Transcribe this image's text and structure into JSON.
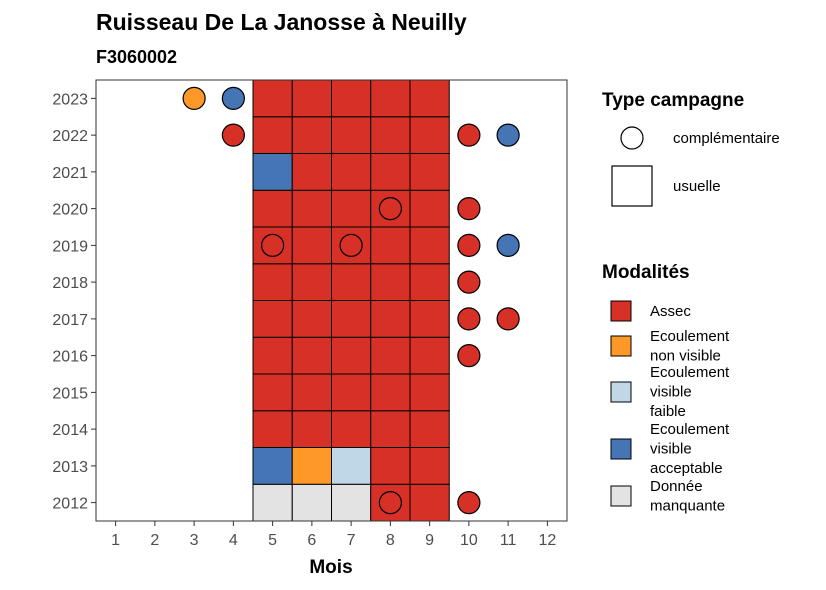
{
  "chart_data": {
    "type": "heatmap",
    "title": "Ruisseau De La Janosse à Neuilly",
    "subtitle": "F3060002",
    "xlabel": "Mois",
    "ylabel": "",
    "x_ticks": [
      "1",
      "2",
      "3",
      "4",
      "5",
      "6",
      "7",
      "8",
      "9",
      "10",
      "11",
      "12"
    ],
    "y_ticks": [
      "2012",
      "2013",
      "2014",
      "2015",
      "2016",
      "2017",
      "2018",
      "2019",
      "2020",
      "2021",
      "2022",
      "2023"
    ],
    "xlim": [
      0.5,
      12.5
    ],
    "ylim": [
      2011.5,
      2023.5
    ],
    "grid": false,
    "legend_position": "right",
    "legend_shape": {
      "title": "Type campagne",
      "items": [
        {
          "label": "complémentaire",
          "shape": "circle"
        },
        {
          "label": "usuelle",
          "shape": "square"
        }
      ]
    },
    "legend_color": {
      "title": "Modalités",
      "items": [
        {
          "key": "assec",
          "label_lines": [
            "Assec"
          ],
          "color": "#d73027"
        },
        {
          "key": "nonvisible",
          "label_lines": [
            "Ecoulement",
            "non visible"
          ],
          "color": "#fe9929"
        },
        {
          "key": "faible",
          "label_lines": [
            "Ecoulement",
            "visible",
            "faible"
          ],
          "color": "#bfd7e6"
        },
        {
          "key": "acceptable",
          "label_lines": [
            "Ecoulement",
            "visible",
            "acceptable"
          ],
          "color": "#4575b4"
        },
        {
          "key": "manquante",
          "label_lines": [
            "Donnée",
            "manquante"
          ],
          "color": "#e3e3e3"
        }
      ]
    },
    "usuelle": [
      {
        "year": 2012,
        "month": 5,
        "value": "manquante"
      },
      {
        "year": 2012,
        "month": 6,
        "value": "manquante"
      },
      {
        "year": 2012,
        "month": 7,
        "value": "manquante"
      },
      {
        "year": 2012,
        "month": 8,
        "value": "assec"
      },
      {
        "year": 2012,
        "month": 9,
        "value": "assec"
      },
      {
        "year": 2013,
        "month": 5,
        "value": "acceptable"
      },
      {
        "year": 2013,
        "month": 6,
        "value": "nonvisible"
      },
      {
        "year": 2013,
        "month": 7,
        "value": "faible"
      },
      {
        "year": 2013,
        "month": 8,
        "value": "assec"
      },
      {
        "year": 2013,
        "month": 9,
        "value": "assec"
      },
      {
        "year": 2014,
        "month": 5,
        "value": "assec"
      },
      {
        "year": 2014,
        "month": 6,
        "value": "assec"
      },
      {
        "year": 2014,
        "month": 7,
        "value": "assec"
      },
      {
        "year": 2014,
        "month": 8,
        "value": "assec"
      },
      {
        "year": 2014,
        "month": 9,
        "value": "assec"
      },
      {
        "year": 2015,
        "month": 5,
        "value": "assec"
      },
      {
        "year": 2015,
        "month": 6,
        "value": "assec"
      },
      {
        "year": 2015,
        "month": 7,
        "value": "assec"
      },
      {
        "year": 2015,
        "month": 8,
        "value": "assec"
      },
      {
        "year": 2015,
        "month": 9,
        "value": "assec"
      },
      {
        "year": 2016,
        "month": 5,
        "value": "assec"
      },
      {
        "year": 2016,
        "month": 6,
        "value": "assec"
      },
      {
        "year": 2016,
        "month": 7,
        "value": "assec"
      },
      {
        "year": 2016,
        "month": 8,
        "value": "assec"
      },
      {
        "year": 2016,
        "month": 9,
        "value": "assec"
      },
      {
        "year": 2017,
        "month": 5,
        "value": "assec"
      },
      {
        "year": 2017,
        "month": 6,
        "value": "assec"
      },
      {
        "year": 2017,
        "month": 7,
        "value": "assec"
      },
      {
        "year": 2017,
        "month": 8,
        "value": "assec"
      },
      {
        "year": 2017,
        "month": 9,
        "value": "assec"
      },
      {
        "year": 2018,
        "month": 5,
        "value": "assec"
      },
      {
        "year": 2018,
        "month": 6,
        "value": "assec"
      },
      {
        "year": 2018,
        "month": 7,
        "value": "assec"
      },
      {
        "year": 2018,
        "month": 8,
        "value": "assec"
      },
      {
        "year": 2018,
        "month": 9,
        "value": "assec"
      },
      {
        "year": 2019,
        "month": 5,
        "value": "assec"
      },
      {
        "year": 2019,
        "month": 6,
        "value": "assec"
      },
      {
        "year": 2019,
        "month": 7,
        "value": "assec"
      },
      {
        "year": 2019,
        "month": 8,
        "value": "assec"
      },
      {
        "year": 2019,
        "month": 9,
        "value": "assec"
      },
      {
        "year": 2020,
        "month": 5,
        "value": "assec"
      },
      {
        "year": 2020,
        "month": 6,
        "value": "assec"
      },
      {
        "year": 2020,
        "month": 7,
        "value": "assec"
      },
      {
        "year": 2020,
        "month": 8,
        "value": "assec"
      },
      {
        "year": 2020,
        "month": 9,
        "value": "assec"
      },
      {
        "year": 2021,
        "month": 5,
        "value": "acceptable"
      },
      {
        "year": 2021,
        "month": 6,
        "value": "assec"
      },
      {
        "year": 2021,
        "month": 7,
        "value": "assec"
      },
      {
        "year": 2021,
        "month": 8,
        "value": "assec"
      },
      {
        "year": 2021,
        "month": 9,
        "value": "assec"
      },
      {
        "year": 2022,
        "month": 5,
        "value": "assec"
      },
      {
        "year": 2022,
        "month": 6,
        "value": "assec"
      },
      {
        "year": 2022,
        "month": 7,
        "value": "assec"
      },
      {
        "year": 2022,
        "month": 8,
        "value": "assec"
      },
      {
        "year": 2022,
        "month": 9,
        "value": "assec"
      },
      {
        "year": 2023,
        "month": 5,
        "value": "assec"
      },
      {
        "year": 2023,
        "month": 6,
        "value": "assec"
      },
      {
        "year": 2023,
        "month": 7,
        "value": "assec"
      },
      {
        "year": 2023,
        "month": 8,
        "value": "assec"
      },
      {
        "year": 2023,
        "month": 9,
        "value": "assec"
      }
    ],
    "complementaire": [
      {
        "year": 2023,
        "month": 3,
        "value": "nonvisible"
      },
      {
        "year": 2023,
        "month": 4,
        "value": "acceptable"
      },
      {
        "year": 2022,
        "month": 4,
        "value": "assec"
      },
      {
        "year": 2022,
        "month": 10,
        "value": "assec"
      },
      {
        "year": 2022,
        "month": 11,
        "value": "acceptable"
      },
      {
        "year": 2020,
        "month": 8,
        "value": "assec"
      },
      {
        "year": 2020,
        "month": 10,
        "value": "assec"
      },
      {
        "year": 2019,
        "month": 5,
        "value": "assec"
      },
      {
        "year": 2019,
        "month": 7,
        "value": "assec"
      },
      {
        "year": 2019,
        "month": 10,
        "value": "assec"
      },
      {
        "year": 2019,
        "month": 11,
        "value": "acceptable"
      },
      {
        "year": 2018,
        "month": 10,
        "value": "assec"
      },
      {
        "year": 2017,
        "month": 10,
        "value": "assec"
      },
      {
        "year": 2017,
        "month": 11,
        "value": "assec"
      },
      {
        "year": 2016,
        "month": 10,
        "value": "assec"
      },
      {
        "year": 2012,
        "month": 8,
        "value": "assec"
      },
      {
        "year": 2012,
        "month": 10,
        "value": "assec"
      }
    ]
  }
}
